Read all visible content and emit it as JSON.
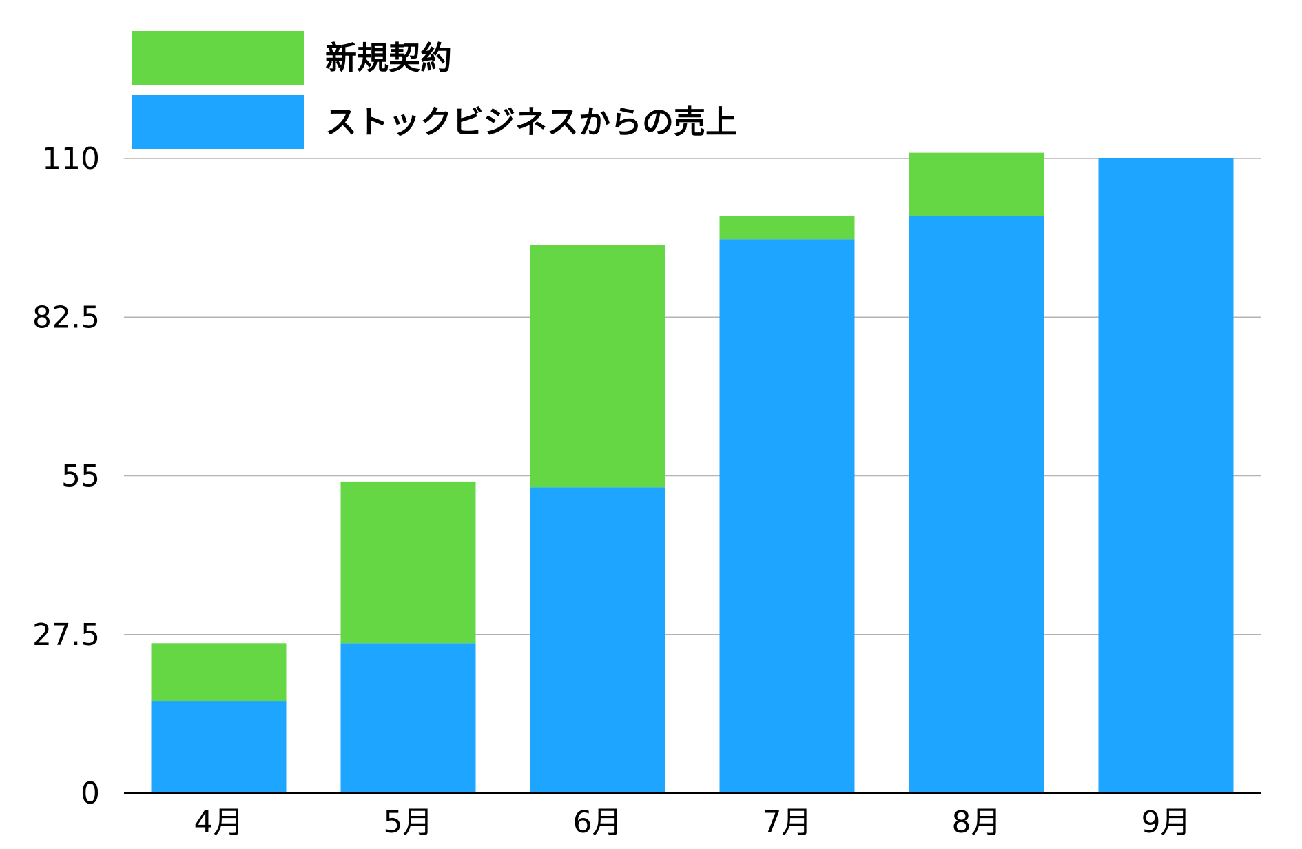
{
  "chart_data": {
    "type": "bar",
    "stacked": true,
    "categories": [
      "4月",
      "5月",
      "6月",
      "7月",
      "8月",
      "9月"
    ],
    "series": [
      {
        "name": "ストックビジネスからの売上",
        "color": "#1ea5ff",
        "values": [
          16,
          26,
          53,
          96,
          100,
          110
        ]
      },
      {
        "name": "新規契約",
        "color": "#66d744",
        "values": [
          10,
          28,
          42,
          4,
          11,
          0
        ]
      }
    ],
    "yticks": [
      "0",
      "27.5",
      "55",
      "82.5",
      "110"
    ],
    "ylim": [
      0,
      110
    ],
    "grid": true,
    "legend_position": "top-left",
    "legend_order": [
      1,
      0
    ]
  }
}
